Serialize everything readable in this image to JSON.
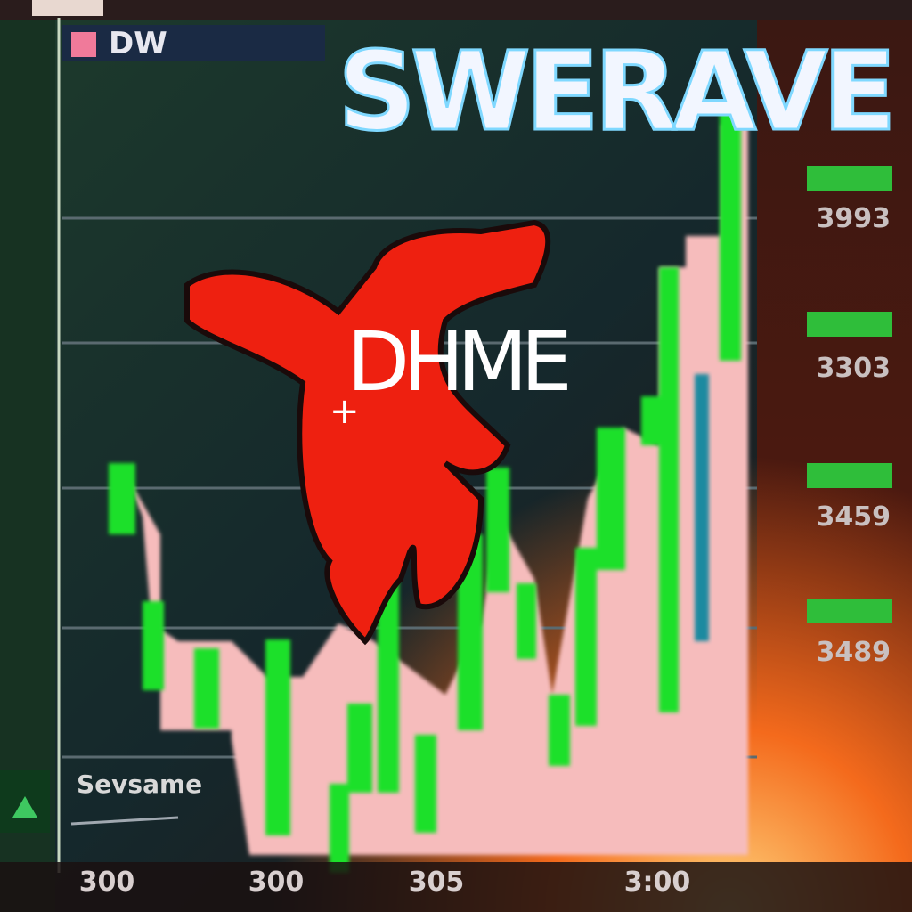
{
  "header": {
    "tag": "DW",
    "title": "SWERAVE"
  },
  "center_text": "DHME",
  "footer_label": "Sevsame",
  "price_labels": [
    "3993",
    "3303",
    "3459",
    "3489"
  ],
  "time_labels": [
    "300",
    "300",
    "305",
    "3:00"
  ]
}
